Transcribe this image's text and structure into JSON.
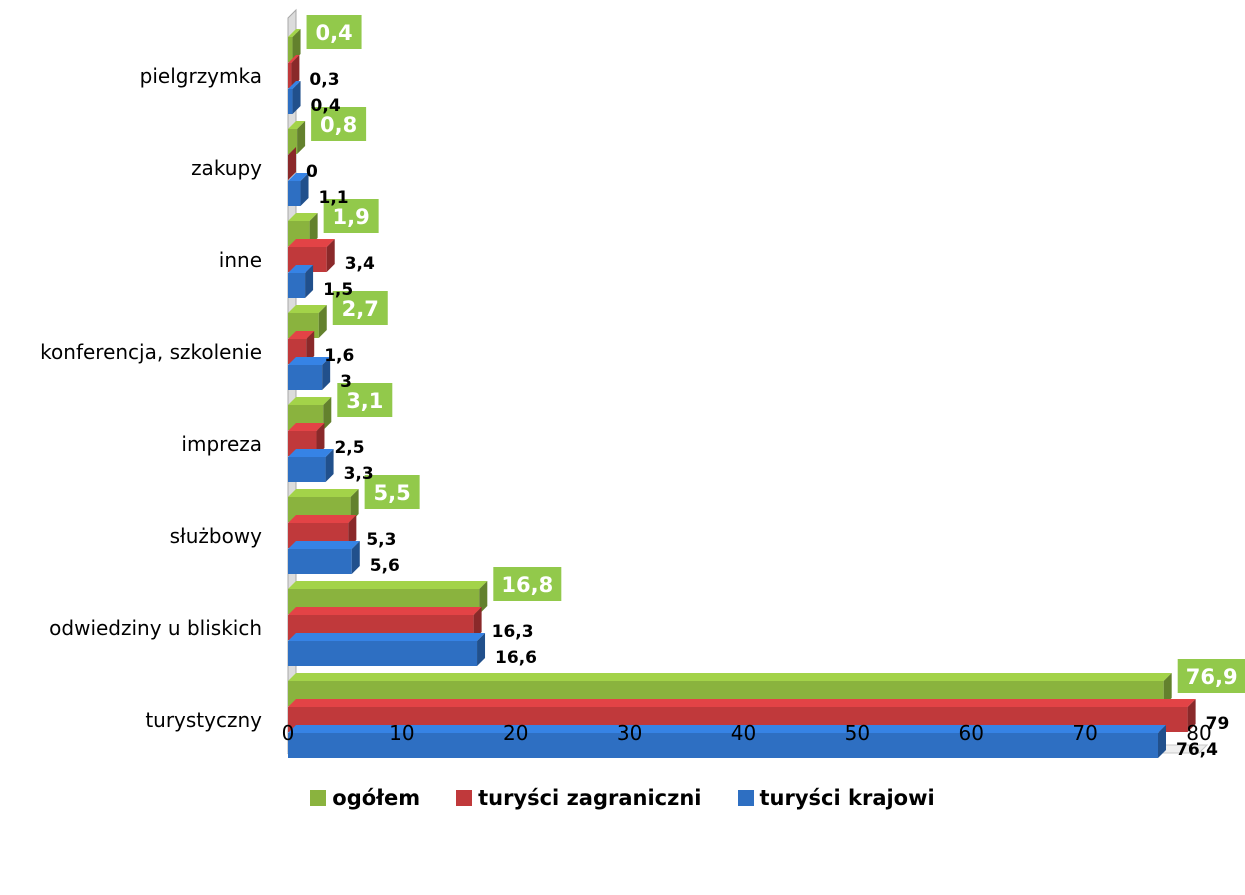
{
  "chart_data": {
    "type": "bar",
    "orientation": "horizontal",
    "categories": [
      "turystyczny",
      "odwiedziny u bliskich",
      "służbowy",
      "impreza",
      "konferencja, szkolenie",
      "inne",
      "zakupy",
      "pielgrzymka"
    ],
    "series": [
      {
        "name": "turyści krajowi",
        "color": "#2e6fc2",
        "values": [
          76.4,
          16.6,
          5.6,
          3.3,
          3,
          1.5,
          1.1,
          0.4
        ],
        "labels": [
          "76,4",
          "16,6",
          "5,6",
          "3,3",
          "3",
          "1,5",
          "1,1",
          "0,4"
        ]
      },
      {
        "name": "turyści zagraniczni",
        "color": "#c0393b",
        "values": [
          79,
          16.3,
          5.3,
          2.5,
          1.6,
          3.4,
          0,
          0.3
        ],
        "labels": [
          "79",
          "16,3",
          "5,3",
          "2,5",
          "1,6",
          "3,4",
          "0",
          "0,3"
        ]
      },
      {
        "name": "ogółem",
        "color": "#8ab33e",
        "values": [
          76.9,
          16.8,
          5.5,
          3.1,
          2.7,
          1.9,
          0.8,
          0.4
        ],
        "labels": [
          "76,9",
          "16,8",
          "5,5",
          "3,1",
          "2,7",
          "1,9",
          "0,8",
          "0,4"
        ]
      }
    ],
    "legend": [
      "ogółem",
      "turyści zagraniczni",
      "turyści krajowi"
    ],
    "xlim": [
      0,
      80
    ],
    "xticks": [
      "0",
      "10",
      "20",
      "30",
      "40",
      "50",
      "60",
      "70",
      "80"
    ],
    "highlight_color": "#92c94b",
    "legend_position": "bottom"
  }
}
